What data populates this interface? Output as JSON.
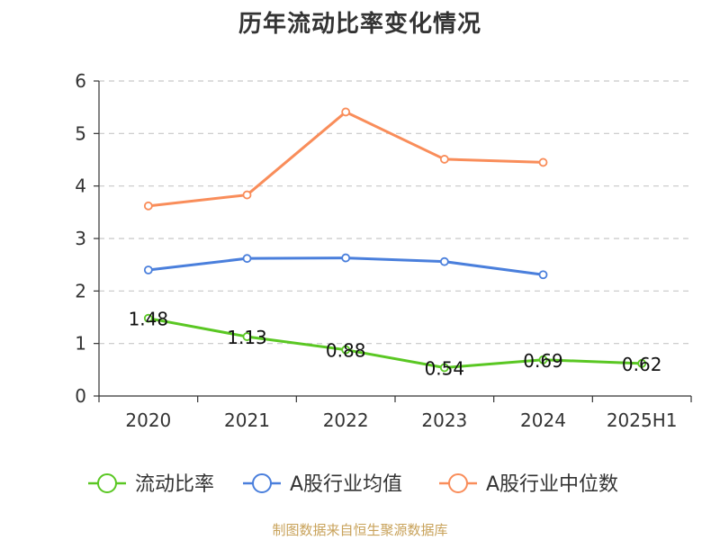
{
  "source_note": "制图数据来自恒生聚源数据库",
  "chart_data": {
    "type": "line",
    "title": "历年流动比率变化情况",
    "xlabel": "",
    "ylabel": "",
    "categories": [
      "2020",
      "2021",
      "2022",
      "2023",
      "2024",
      "2025H1"
    ],
    "ylim": [
      0,
      6
    ],
    "yticks": [
      "0",
      "1",
      "2",
      "3",
      "4",
      "5",
      "6"
    ],
    "grid": true,
    "legend_position": "bottom",
    "series": [
      {
        "name": "流动比率",
        "color": "#5ac723",
        "values": [
          1.48,
          1.13,
          0.88,
          0.54,
          0.69,
          0.62
        ],
        "labels": [
          "1.48",
          "1.13",
          "0.88",
          "0.54",
          "0.69",
          "0.62"
        ]
      },
      {
        "name": "A股行业均值",
        "color": "#4a7fdc",
        "values": [
          2.4,
          2.62,
          2.63,
          2.56,
          2.31,
          null
        ]
      },
      {
        "name": "A股行业中位数",
        "color": "#f98d5a",
        "values": [
          3.62,
          3.83,
          5.41,
          4.51,
          4.45,
          null
        ]
      }
    ]
  }
}
